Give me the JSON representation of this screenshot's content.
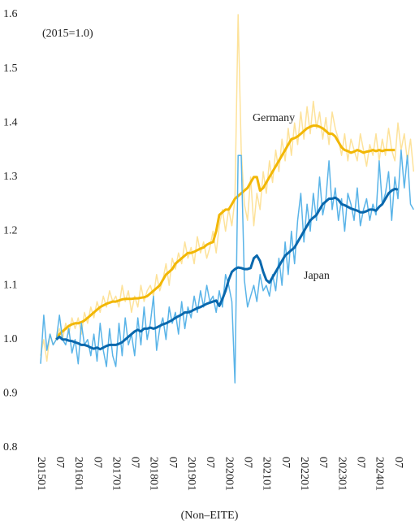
{
  "chart_data": {
    "type": "line",
    "annotations": [
      "(2015=1.0)",
      "(Non–EITE)"
    ],
    "categories": [
      "201501",
      null,
      null,
      null,
      null,
      null,
      "07",
      null,
      null,
      null,
      null,
      null,
      "201601",
      null,
      null,
      null,
      null,
      null,
      "07",
      null,
      null,
      null,
      null,
      null,
      "201701",
      null,
      null,
      null,
      null,
      null,
      "07",
      null,
      null,
      null,
      null,
      null,
      "201801",
      null,
      null,
      null,
      null,
      null,
      "07",
      null,
      null,
      null,
      null,
      null,
      "201901",
      null,
      null,
      null,
      null,
      null,
      "07",
      null,
      null,
      null,
      null,
      null,
      "202001",
      null,
      null,
      null,
      null,
      null,
      "07",
      null,
      null,
      null,
      null,
      null,
      "202101",
      null,
      null,
      null,
      null,
      null,
      "07",
      null,
      null,
      null,
      null,
      null,
      "202201",
      null,
      null,
      null,
      null,
      null,
      "07",
      null,
      null,
      null,
      null,
      null,
      "202301",
      null,
      null,
      null,
      null,
      null,
      "07",
      null,
      null,
      null,
      null,
      null,
      "202401",
      null,
      null,
      null,
      null,
      null,
      "07",
      null,
      null,
      null,
      null,
      null
    ],
    "series": [
      {
        "color": "#fde29a",
        "width": 1.5,
        "values": [
          0.97,
          1.0,
          0.96,
          1.01,
          0.99,
          1.0,
          1.02,
          1.0,
          1.03,
          1.01,
          1.04,
          1.02,
          1.04,
          1.01,
          1.05,
          1.03,
          1.06,
          1.04,
          1.07,
          1.05,
          1.08,
          1.06,
          1.09,
          1.07,
          1.08,
          1.06,
          1.1,
          1.07,
          1.09,
          1.05,
          1.08,
          1.06,
          1.1,
          1.07,
          1.09,
          1.1,
          1.08,
          1.12,
          1.09,
          1.11,
          1.14,
          1.1,
          1.15,
          1.13,
          1.16,
          1.14,
          1.18,
          1.15,
          1.17,
          1.14,
          1.19,
          1.16,
          1.18,
          1.15,
          1.17,
          1.2,
          1.16,
          1.21,
          1.24,
          1.2,
          1.24,
          1.21,
          1.26,
          1.6,
          1.35,
          1.25,
          1.22,
          1.3,
          1.21,
          1.27,
          1.24,
          1.31,
          1.27,
          1.33,
          1.29,
          1.35,
          1.31,
          1.37,
          1.33,
          1.39,
          1.34,
          1.4,
          1.36,
          1.42,
          1.37,
          1.43,
          1.38,
          1.44,
          1.39,
          1.42,
          1.37,
          1.41,
          1.36,
          1.42,
          1.39,
          1.37,
          1.34,
          1.38,
          1.33,
          1.37,
          1.35,
          1.33,
          1.38,
          1.35,
          1.32,
          1.36,
          1.34,
          1.38,
          1.33,
          1.37,
          1.34,
          1.39,
          1.35,
          1.33,
          1.4,
          1.35,
          1.38,
          1.33,
          1.37,
          1.31
        ]
      },
      {
        "name": "Germany",
        "color": "#f2b705",
        "width": 3,
        "values": [
          null,
          null,
          null,
          null,
          null,
          1.0,
          1.01,
          1.015,
          1.02,
          1.025,
          1.028,
          1.03,
          1.03,
          1.032,
          1.035,
          1.04,
          1.045,
          1.05,
          1.055,
          1.06,
          1.063,
          1.066,
          1.068,
          1.07,
          1.07,
          1.072,
          1.074,
          1.075,
          1.075,
          1.075,
          1.076,
          1.076,
          1.077,
          1.078,
          1.08,
          1.085,
          1.09,
          1.095,
          1.1,
          1.11,
          1.12,
          1.125,
          1.13,
          1.14,
          1.145,
          1.15,
          1.155,
          1.16,
          1.16,
          1.162,
          1.165,
          1.168,
          1.17,
          1.175,
          1.178,
          1.18,
          1.2,
          1.23,
          1.235,
          1.24,
          1.24,
          1.25,
          1.26,
          1.265,
          1.27,
          1.275,
          1.28,
          1.29,
          1.3,
          1.3,
          1.275,
          1.28,
          1.29,
          1.3,
          1.31,
          1.32,
          1.33,
          1.34,
          1.35,
          1.36,
          1.37,
          1.372,
          1.375,
          1.38,
          1.385,
          1.39,
          1.393,
          1.395,
          1.395,
          1.393,
          1.39,
          1.385,
          1.38,
          1.38,
          1.375,
          1.365,
          1.355,
          1.35,
          1.348,
          1.345,
          1.347,
          1.35,
          1.348,
          1.345,
          1.347,
          1.348,
          1.35,
          1.348,
          1.35,
          1.348,
          1.35,
          1.35,
          1.35,
          1.35,
          null,
          null,
          null,
          null,
          null,
          null
        ]
      },
      {
        "color": "#5ab4e8",
        "width": 1.5,
        "values": [
          0.955,
          1.045,
          0.98,
          1.01,
          0.99,
          1.0,
          1.045,
          1.0,
          0.99,
          1.02,
          0.975,
          1.0,
          0.955,
          1.03,
          0.99,
          1.0,
          0.97,
          1.01,
          0.96,
          1.03,
          0.98,
          0.95,
          1.02,
          0.97,
          0.95,
          1.03,
          0.97,
          1.04,
          0.99,
          1.01,
          0.97,
          1.04,
          0.99,
          1.06,
          1.0,
          1.03,
          1.08,
          0.98,
          1.02,
          1.04,
          1.0,
          1.06,
          1.03,
          1.05,
          1.01,
          1.07,
          1.02,
          1.06,
          1.04,
          1.08,
          1.05,
          1.09,
          1.06,
          1.1,
          1.07,
          1.08,
          1.05,
          1.09,
          1.06,
          1.12,
          1.1,
          1.07,
          0.92,
          1.34,
          1.34,
          1.11,
          1.06,
          1.08,
          1.1,
          1.07,
          1.12,
          1.09,
          1.1,
          1.08,
          1.12,
          1.09,
          1.15,
          1.1,
          1.18,
          1.12,
          1.2,
          1.14,
          1.22,
          1.27,
          1.18,
          1.25,
          1.2,
          1.27,
          1.22,
          1.3,
          1.23,
          1.26,
          1.33,
          1.24,
          1.28,
          1.22,
          1.26,
          1.2,
          1.27,
          1.25,
          1.22,
          1.28,
          1.21,
          1.24,
          1.26,
          1.22,
          1.25,
          1.23,
          1.33,
          1.25,
          1.27,
          1.31,
          1.22,
          1.3,
          1.26,
          1.35,
          1.28,
          1.34,
          1.25,
          1.24
        ]
      },
      {
        "name": "Japan",
        "color": "#0a68ad",
        "width": 3,
        "values": [
          null,
          null,
          null,
          null,
          null,
          1.0,
          1.005,
          1.0,
          1.0,
          0.998,
          0.997,
          0.995,
          0.993,
          0.99,
          0.99,
          0.988,
          0.985,
          0.983,
          0.985,
          0.982,
          0.985,
          0.988,
          0.99,
          0.99,
          0.99,
          0.992,
          0.995,
          1.0,
          1.005,
          1.01,
          1.015,
          1.018,
          1.015,
          1.02,
          1.02,
          1.022,
          1.02,
          1.022,
          1.025,
          1.028,
          1.03,
          1.033,
          1.036,
          1.04,
          1.043,
          1.046,
          1.05,
          1.05,
          1.052,
          1.055,
          1.058,
          1.06,
          1.063,
          1.066,
          1.068,
          1.07,
          1.072,
          1.062,
          1.075,
          1.09,
          1.11,
          1.125,
          1.13,
          1.133,
          1.132,
          1.13,
          1.13,
          1.132,
          1.15,
          1.155,
          1.145,
          1.125,
          1.11,
          1.105,
          1.115,
          1.125,
          1.135,
          1.145,
          1.155,
          1.16,
          1.165,
          1.17,
          1.18,
          1.19,
          1.2,
          1.21,
          1.22,
          1.225,
          1.23,
          1.24,
          1.25,
          1.255,
          1.26,
          1.26,
          1.262,
          1.258,
          1.25,
          1.248,
          1.245,
          1.242,
          1.24,
          1.238,
          1.235,
          1.235,
          1.237,
          1.24,
          1.24,
          1.238,
          1.245,
          1.25,
          1.26,
          1.27,
          1.275,
          1.278,
          1.277,
          null,
          null,
          null,
          null,
          null
        ]
      }
    ],
    "ylim": [
      0.8,
      1.6
    ],
    "yticks": [
      0.8,
      0.9,
      {
        "value": 1,
        "label": "1.0"
      },
      1.1,
      1.2,
      1.3,
      1.4,
      1.5,
      1.6
    ],
    "grid": false
  }
}
